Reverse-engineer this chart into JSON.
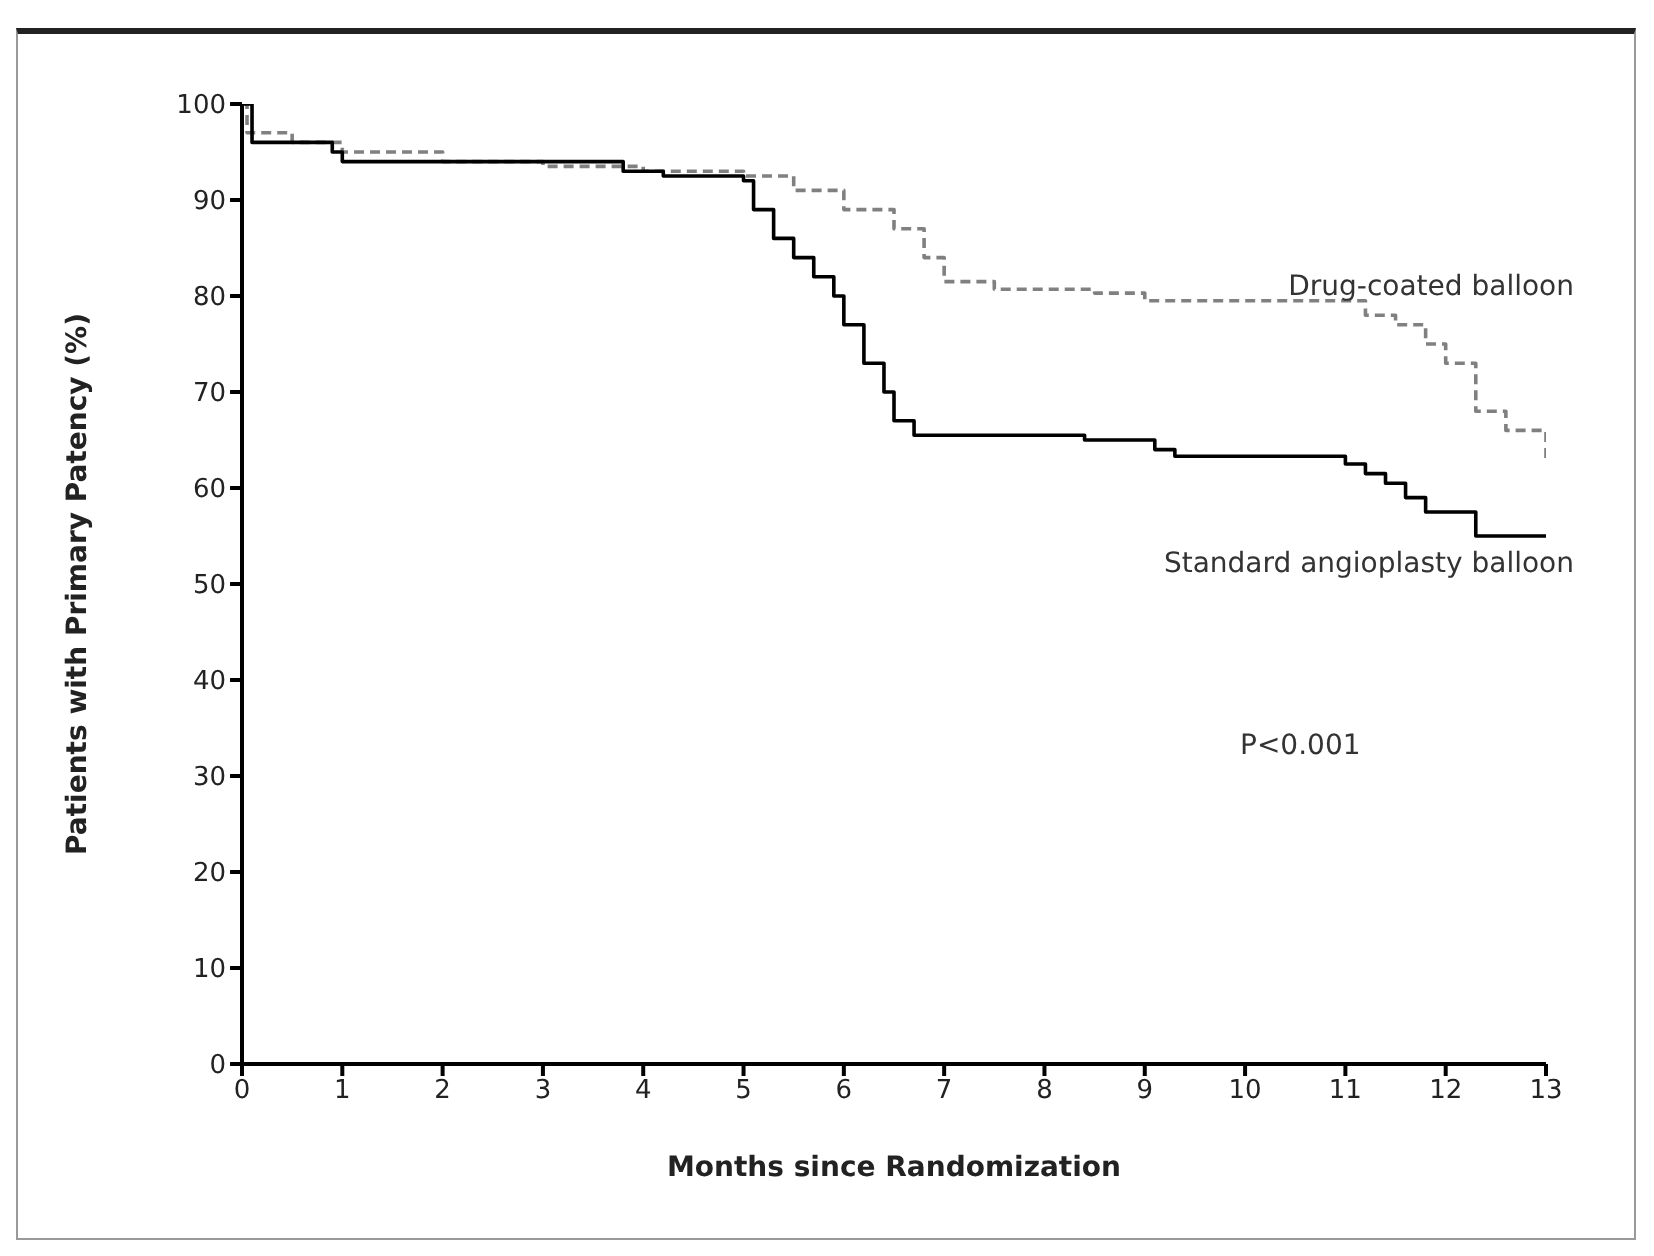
{
  "chart_data": {
    "type": "step",
    "xlabel": "Months since Randomization",
    "ylabel": "Patients with Primary Patency (%)",
    "xlim": [
      0,
      13
    ],
    "xticks": [
      0,
      1,
      2,
      3,
      4,
      5,
      6,
      7,
      8,
      9,
      10,
      11,
      12,
      13
    ],
    "ylim": [
      0,
      100
    ],
    "yticks": [
      0,
      10,
      20,
      30,
      40,
      50,
      60,
      70,
      80,
      90,
      100
    ],
    "grid": false,
    "legend": false,
    "annotations": [
      "P<0.001"
    ],
    "series": [
      {
        "name": "Drug-coated balloon",
        "color": "#808080",
        "line_style": "dashed",
        "x": [
          0,
          0.05,
          0.5,
          1.0,
          2.0,
          3.0,
          4.0,
          5.0,
          5.5,
          6.0,
          6.5,
          6.8,
          7.0,
          7.5,
          8.5,
          9.0,
          11.0,
          11.2,
          11.5,
          11.8,
          12.0,
          12.3,
          12.6,
          13
        ],
        "values": [
          100,
          97,
          96,
          95,
          94,
          93.5,
          93,
          92.5,
          91,
          89,
          87,
          84,
          81.5,
          80.7,
          80.3,
          79.5,
          79.5,
          78,
          77,
          75,
          73,
          68,
          66,
          63
        ]
      },
      {
        "name": "Standard angioplasty balloon",
        "color": "#000000",
        "line_style": "solid",
        "x": [
          0,
          0.1,
          0.9,
          1.0,
          3.7,
          3.8,
          4.2,
          5.0,
          5.1,
          5.3,
          5.5,
          5.7,
          5.9,
          6.0,
          6.2,
          6.4,
          6.5,
          6.7,
          8.4,
          9.1,
          9.3,
          11.0,
          11.2,
          11.4,
          11.6,
          11.8,
          12.3,
          13
        ],
        "values": [
          100,
          96,
          95,
          94,
          94,
          93,
          92.5,
          92,
          89,
          86,
          84,
          82,
          80,
          77,
          73,
          70,
          67,
          65.5,
          65,
          64,
          63.3,
          62.5,
          61.5,
          60.5,
          59,
          57.5,
          55,
          55
        ]
      }
    ]
  }
}
